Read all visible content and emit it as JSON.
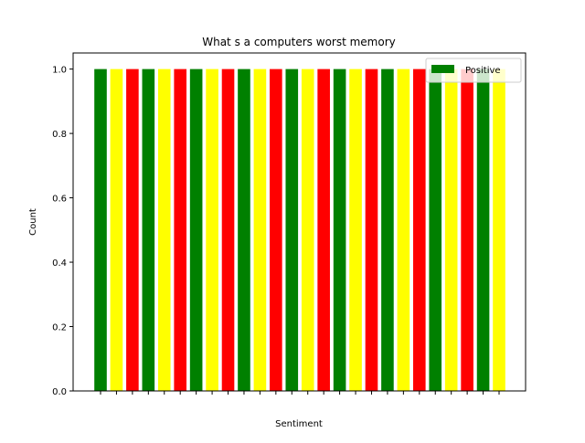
{
  "chart_data": {
    "type": "bar",
    "title": "What s a computers worst memory",
    "xlabel": "Sentiment",
    "ylabel": "Count",
    "ylim": [
      0,
      1.05
    ],
    "yticks": [
      0.0,
      0.2,
      0.4,
      0.6,
      0.8,
      1.0
    ],
    "ytick_labels": [
      "0.0",
      "0.2",
      "0.4",
      "0.6",
      "0.8",
      "1.0"
    ],
    "grid": false,
    "legend": {
      "position": "top-right",
      "entries": [
        {
          "label": "Positive",
          "color": "#008000"
        }
      ]
    },
    "bar_colors": [
      "#008000",
      "#ffff00",
      "#ff0000"
    ],
    "categories": [
      "",
      "",
      "",
      "",
      "",
      "",
      "",
      "",
      "",
      "",
      "",
      "",
      "",
      "",
      "",
      "",
      "",
      "",
      "",
      "",
      "",
      "",
      "",
      "",
      "",
      ""
    ],
    "values": [
      1,
      1,
      1,
      1,
      1,
      1,
      1,
      1,
      1,
      1,
      1,
      1,
      1,
      1,
      1,
      1,
      1,
      1,
      1,
      1,
      1,
      1,
      1,
      1,
      1,
      1
    ]
  }
}
